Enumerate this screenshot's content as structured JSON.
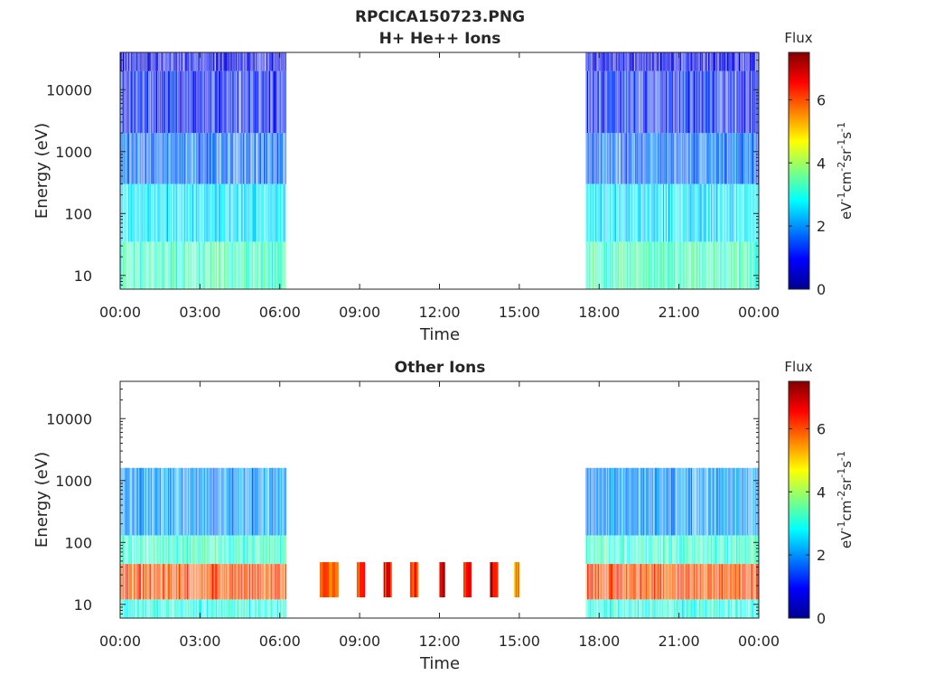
{
  "figure": {
    "title": "RPCICA150723.PNG"
  },
  "chart_data": [
    {
      "type": "heatmap",
      "title": "H+ He++ Ions",
      "xlabel": "Time",
      "ylabel": "Energy (eV)",
      "x_tick_labels": [
        "00:00",
        "03:00",
        "06:00",
        "09:00",
        "12:00",
        "15:00",
        "18:00",
        "21:00",
        "00:00"
      ],
      "x_ticks_hours": [
        0,
        3,
        6,
        9,
        12,
        15,
        18,
        21,
        24
      ],
      "y_tick_labels": [
        "10",
        "100",
        "1000",
        "10000"
      ],
      "y_ticks": [
        10,
        100,
        1000,
        10000
      ],
      "y_scale": "log",
      "xlim_hours": [
        0,
        24
      ],
      "ylim": [
        6,
        40000
      ],
      "colorbar": {
        "title": "Flux",
        "label": "eV-1cm-2sr-1s-1",
        "label_base": "eV",
        "label_sup1": "-1",
        "label_unit2": "cm",
        "label_sup2": "-2",
        "label_unit3": "sr",
        "label_sup3": "-1",
        "label_unit4": "s",
        "label_sup4": "-1",
        "ticks": [
          0,
          2,
          4,
          6
        ],
        "tick_labels": [
          "0",
          "2",
          "4",
          "6"
        ],
        "range": [
          0,
          7.5
        ],
        "colormap": "jet"
      },
      "data_intervals_hours": [
        [
          0,
          6.2
        ],
        [
          17.5,
          24
        ]
      ],
      "series": [
        {
          "energy_band": [
            6,
            35
          ],
          "flux": 3.3
        },
        {
          "energy_band": [
            35,
            300
          ],
          "flux": 2.6
        },
        {
          "energy_band": [
            300,
            2000
          ],
          "flux": 1.7
        },
        {
          "energy_band": [
            2000,
            20000
          ],
          "flux": 1.1
        },
        {
          "energy_band": [
            20000,
            40000
          ],
          "flux": 0.8
        }
      ]
    },
    {
      "type": "heatmap",
      "title": "Other Ions",
      "xlabel": "Time",
      "ylabel": "Energy (eV)",
      "x_tick_labels": [
        "00:00",
        "03:00",
        "06:00",
        "09:00",
        "12:00",
        "15:00",
        "18:00",
        "21:00",
        "00:00"
      ],
      "x_ticks_hours": [
        0,
        3,
        6,
        9,
        12,
        15,
        18,
        21,
        24
      ],
      "y_tick_labels": [
        "10",
        "100",
        "1000",
        "10000"
      ],
      "y_ticks": [
        10,
        100,
        1000,
        10000
      ],
      "y_scale": "log",
      "xlim_hours": [
        0,
        24
      ],
      "ylim": [
        6,
        40000
      ],
      "colorbar": {
        "title": "Flux",
        "label": "eV-1cm-2sr-1s-1",
        "label_base": "eV",
        "label_sup1": "-1",
        "label_unit2": "cm",
        "label_sup2": "-2",
        "label_unit3": "sr",
        "label_sup3": "-1",
        "label_unit4": "s",
        "label_sup4": "-1",
        "ticks": [
          0,
          2,
          4,
          6
        ],
        "tick_labels": [
          "0",
          "2",
          "4",
          "6"
        ],
        "range": [
          0,
          7.5
        ],
        "colormap": "jet"
      },
      "data_intervals_hours": [
        [
          0,
          6.2
        ],
        [
          17.5,
          24
        ]
      ],
      "series": [
        {
          "energy_band": [
            6,
            12
          ],
          "flux": 3.0
        },
        {
          "energy_band": [
            12,
            45
          ],
          "flux": 6.0
        },
        {
          "energy_band": [
            45,
            130
          ],
          "flux": 3.2
        },
        {
          "energy_band": [
            130,
            1600
          ],
          "flux": 2.0
        }
      ],
      "blocks": [
        {
          "start_hour": 7.5,
          "end_hour": 8.2,
          "energy_band": [
            13,
            48
          ],
          "flux": 5.8
        },
        {
          "start_hour": 8.9,
          "end_hour": 9.2,
          "energy_band": [
            13,
            48
          ],
          "flux": 6.0
        },
        {
          "start_hour": 9.9,
          "end_hour": 10.2,
          "energy_band": [
            13,
            48
          ],
          "flux": 6.5
        },
        {
          "start_hour": 10.9,
          "end_hour": 11.2,
          "energy_band": [
            13,
            48
          ],
          "flux": 6.2
        },
        {
          "start_hour": 12.0,
          "end_hour": 12.2,
          "energy_band": [
            13,
            48
          ],
          "flux": 7.0
        },
        {
          "start_hour": 12.9,
          "end_hour": 13.2,
          "energy_band": [
            13,
            48
          ],
          "flux": 6.3
        },
        {
          "start_hour": 13.9,
          "end_hour": 14.2,
          "energy_band": [
            13,
            48
          ],
          "flux": 6.8
        },
        {
          "start_hour": 14.8,
          "end_hour": 15.0,
          "energy_band": [
            13,
            48
          ],
          "flux": 5.5
        }
      ]
    }
  ]
}
